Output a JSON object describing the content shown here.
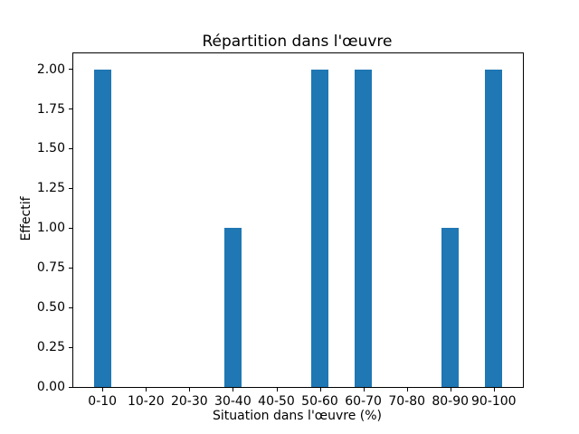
{
  "chart_data": {
    "type": "bar",
    "title": "Répartition dans l'œuvre",
    "xlabel": "Situation dans l'œuvre (%)",
    "ylabel": "Effectif",
    "categories": [
      "0-10",
      "10-20",
      "20-30",
      "30-40",
      "40-50",
      "50-60",
      "60-70",
      "70-80",
      "80-90",
      "90-100"
    ],
    "values": [
      2,
      0,
      0,
      1,
      0,
      2,
      2,
      0,
      1,
      2
    ],
    "ylim": [
      0,
      2.1
    ],
    "yticks": [
      "0.00",
      "0.25",
      "0.50",
      "0.75",
      "1.00",
      "1.25",
      "1.50",
      "1.75",
      "2.00"
    ],
    "bar_color": "#1f77b4",
    "grid": false,
    "legend_position": "none"
  }
}
